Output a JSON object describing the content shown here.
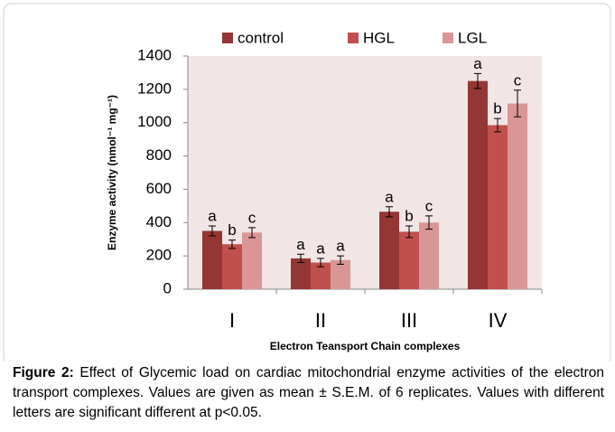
{
  "chart_data": {
    "type": "bar",
    "categories": [
      "I",
      "II",
      "III",
      "IV"
    ],
    "series": [
      {
        "name": "control",
        "color": "#943634",
        "values": [
          350,
          185,
          465,
          1250
        ],
        "errors": [
          30,
          25,
          30,
          45
        ],
        "letters": [
          "a",
          "a",
          "a",
          "a"
        ]
      },
      {
        "name": "HGL",
        "color": "#c0504d",
        "values": [
          270,
          160,
          345,
          985
        ],
        "errors": [
          25,
          25,
          35,
          40
        ],
        "letters": [
          "b",
          "a",
          "b",
          "b"
        ]
      },
      {
        "name": "LGL",
        "color": "#d99694",
        "values": [
          340,
          175,
          400,
          1115
        ],
        "errors": [
          30,
          25,
          40,
          80
        ],
        "letters": [
          "c",
          "a",
          "c",
          "c"
        ]
      }
    ],
    "ylim": [
      0,
      1400
    ],
    "yticks": [
      0,
      200,
      400,
      600,
      800,
      1000,
      1200,
      1400
    ],
    "ylabel": "Enzyme activity (nmol⁻¹ mg⁻¹)",
    "xlabel": "Electron Teansport Chain complexes",
    "legend": "top",
    "caption_label": "Figure 2:",
    "caption_text": " Effect of Glycemic load on cardiac mitochondrial enzyme activities of the electron transport complexes. Values are given as mean ± S.E.M. of 6 replicates. Values with different letters are significant different at p<0.05."
  }
}
